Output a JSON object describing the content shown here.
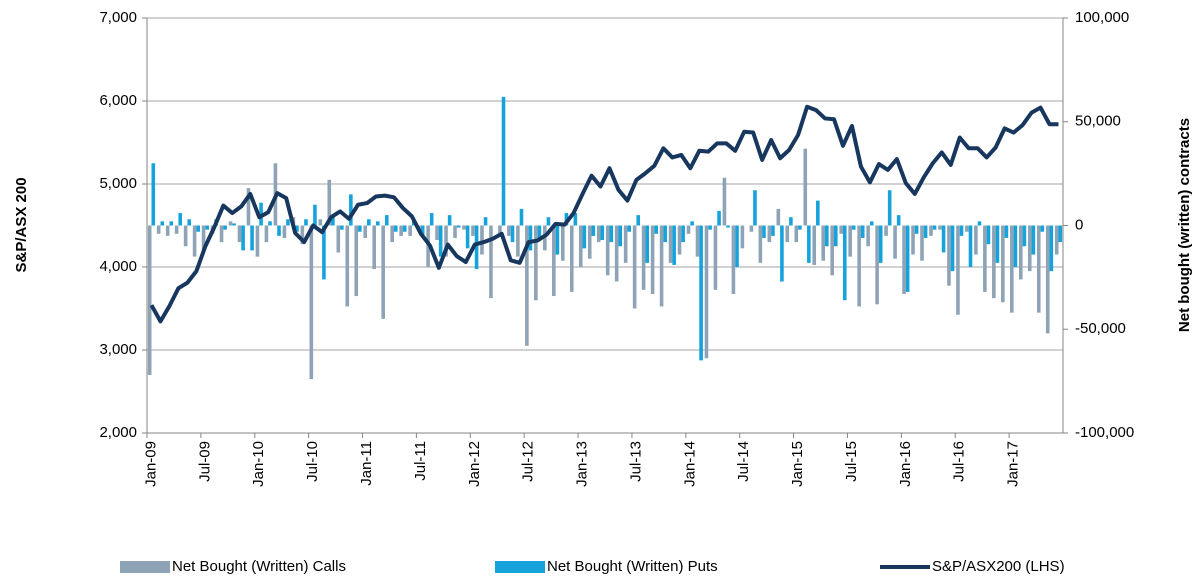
{
  "chart_data": {
    "type": "combo",
    "y_label": "S&P/ASX 200",
    "y2_label": "Net bought (written) contracts",
    "categories": [
      "Jan-09",
      null,
      null,
      null,
      null,
      null,
      "Jul-09",
      null,
      null,
      null,
      null,
      null,
      "Jan-10",
      null,
      null,
      null,
      null,
      null,
      "Jul-10",
      null,
      null,
      null,
      null,
      null,
      "Jan-11",
      null,
      null,
      null,
      null,
      null,
      "Jul-11",
      null,
      null,
      null,
      null,
      null,
      "Jan-12",
      null,
      null,
      null,
      null,
      null,
      "Jul-12",
      null,
      null,
      null,
      null,
      null,
      "Jan-13",
      null,
      null,
      null,
      null,
      null,
      "Jul-13",
      null,
      null,
      null,
      null,
      null,
      "Jan-14",
      null,
      null,
      null,
      null,
      null,
      "Jul-14",
      null,
      null,
      null,
      null,
      null,
      "Jan-15",
      null,
      null,
      null,
      null,
      null,
      "Jul-15",
      null,
      null,
      null,
      null,
      null,
      "Jan-16",
      null,
      null,
      null,
      null,
      null,
      "Jul-16",
      null,
      null,
      null,
      null,
      null,
      "Jan-17",
      null,
      null,
      null,
      null,
      null
    ],
    "series": [
      {
        "name": "Net Bought (Written) Calls",
        "type": "bar",
        "axis": "y2",
        "color": "#8ea3b5",
        "values": [
          -72000,
          -4000,
          -5000,
          -4000,
          -10000,
          -15000,
          -12000,
          -4000,
          -8000,
          2000,
          -8000,
          18000,
          -15000,
          -8000,
          30000,
          -6000,
          4000,
          -9000,
          -74000,
          3000,
          22000,
          -13000,
          -39000,
          -34000,
          -6000,
          -21000,
          -45000,
          -8000,
          -5000,
          -5000,
          -3000,
          -20000,
          -7000,
          -15000,
          -6000,
          -2000,
          -5000,
          -14000,
          -35000,
          -5000,
          -5000,
          -15000,
          -58000,
          -36000,
          -12000,
          -34000,
          -17000,
          -32000,
          -20000,
          -16000,
          -8000,
          -24000,
          -27000,
          -18000,
          -40000,
          -31000,
          -33000,
          -39000,
          -18000,
          -14000,
          -4000,
          -15000,
          -64000,
          -31000,
          23000,
          -33000,
          -11000,
          -3000,
          -18000,
          -8000,
          8000,
          -8000,
          -8000,
          37000,
          -19000,
          -17000,
          -24000,
          -4000,
          -15000,
          -39000,
          -10000,
          -38000,
          -5000,
          -16000,
          -33000,
          -14000,
          -17000,
          -5000,
          -2000,
          -29000,
          -43000,
          -3000,
          -14000,
          -32000,
          -35000,
          -37000,
          -42000,
          -26000,
          -22000,
          -42000,
          -52000,
          -14000
        ]
      },
      {
        "name": "Net Bought (Written) Puts",
        "type": "bar",
        "axis": "y2",
        "color": "#16a3dc",
        "values": [
          30000,
          2000,
          2000,
          6000,
          3000,
          -3000,
          -2000,
          3000,
          -2000,
          1000,
          -12000,
          -12000,
          11000,
          2000,
          -5000,
          3000,
          -3000,
          3000,
          10000,
          -26000,
          4000,
          -2000,
          15000,
          -3000,
          3000,
          2000,
          5000,
          -3000,
          -3000,
          2000,
          -5000,
          6000,
          -15000,
          5000,
          -1000,
          -11000,
          -21000,
          4000,
          0,
          62000,
          -8000,
          8000,
          -12000,
          -6000,
          4000,
          -14000,
          6000,
          6000,
          -11000,
          -5000,
          -7000,
          -8000,
          -10000,
          -3000,
          5000,
          -18000,
          -4000,
          -8000,
          -19000,
          -8000,
          2000,
          -65000,
          -2000,
          7000,
          -1000,
          -20000,
          0,
          17000,
          -6000,
          -5000,
          -27000,
          4000,
          -2000,
          -18000,
          12000,
          -10000,
          -10000,
          -36000,
          -2000,
          -6000,
          2000,
          -18000,
          17000,
          5000,
          -32000,
          -4000,
          -6000,
          -2000,
          -13000,
          -22000,
          -5000,
          -20000,
          2000,
          -9000,
          -18000,
          -6000,
          -20000,
          -10000,
          -14000,
          -3000,
          -22000,
          -8000
        ]
      },
      {
        "name": "S&P/ASX200 (LHS)",
        "type": "line",
        "color": "#17375e",
        "values": [
          3540,
          3345,
          3530,
          3745,
          3810,
          3950,
          4250,
          4480,
          4740,
          4650,
          4730,
          4880,
          4600,
          4660,
          4890,
          4830,
          4410,
          4300,
          4500,
          4420,
          4600,
          4670,
          4580,
          4750,
          4770,
          4850,
          4860,
          4840,
          4710,
          4610,
          4400,
          4260,
          3990,
          4270,
          4130,
          4060,
          4270,
          4300,
          4340,
          4400,
          4080,
          4050,
          4300,
          4320,
          4390,
          4520,
          4510,
          4650,
          4880,
          5100,
          4970,
          5190,
          4930,
          4800,
          5050,
          5130,
          5220,
          5430,
          5320,
          5350,
          5190,
          5400,
          5390,
          5490,
          5490,
          5400,
          5630,
          5620,
          5290,
          5530,
          5310,
          5410,
          5590,
          5930,
          5890,
          5790,
          5780,
          5460,
          5700,
          5210,
          5020,
          5240,
          5170,
          5300,
          5010,
          4880,
          5080,
          5250,
          5380,
          5230,
          5560,
          5430,
          5430,
          5320,
          5440,
          5670,
          5620,
          5710,
          5860,
          5920,
          5720,
          5720
        ]
      }
    ],
    "ylim": [
      2000,
      7000
    ],
    "yticks": [
      {
        "value": 2000,
        "label": "2,000"
      },
      {
        "value": 3000,
        "label": "3,000"
      },
      {
        "value": 4000,
        "label": "4,000"
      },
      {
        "value": 5000,
        "label": "5,000"
      },
      {
        "value": 6000,
        "label": "6,000"
      },
      {
        "value": 7000,
        "label": "7,000"
      }
    ],
    "y2lim": [
      -100000,
      100000
    ],
    "y2ticks": [
      {
        "value": -100000,
        "label": "-100,000"
      },
      {
        "value": -50000,
        "label": "-50,000"
      },
      0,
      {
        "value": 50000,
        "label": "50,000"
      },
      {
        "value": 100000,
        "label": "100,000"
      }
    ],
    "grid": true
  }
}
